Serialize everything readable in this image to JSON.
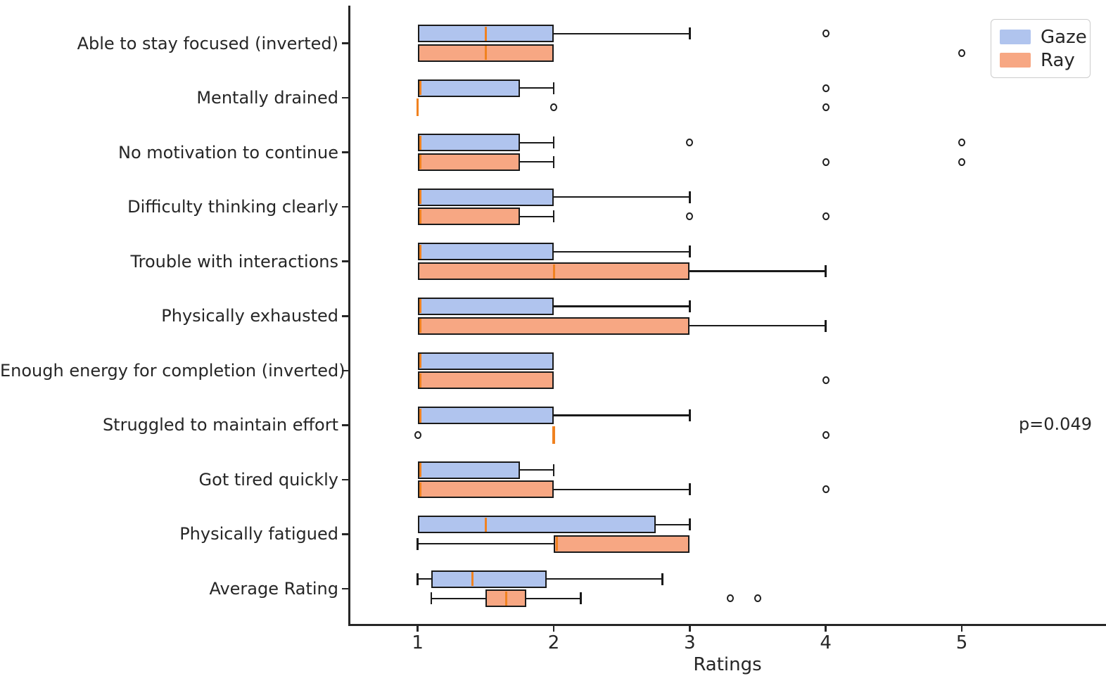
{
  "chart_data": {
    "type": "boxplot",
    "orientation": "horizontal",
    "title": "",
    "xlabel": "Ratings",
    "x_ticks": [
      1,
      2,
      3,
      4,
      5
    ],
    "xlim": [
      0.5,
      6.06
    ],
    "grid": false,
    "legend_position": "upper-right",
    "categories": [
      "Able to stay focused (inverted)",
      "Mentally drained",
      "No motivation to continue",
      "Difficulty thinking clearly",
      "Trouble with interactions",
      "Physically exhausted",
      "Enough energy for completion (inverted)",
      "Struggled to maintain effort",
      "Got tired quickly",
      "Physically fatigued",
      "Average Rating"
    ],
    "series": [
      {
        "name": "Gaze",
        "color": "#b0c4ee",
        "boxes": [
          {
            "whislo": 1.0,
            "q1": 1.0,
            "med": 1.5,
            "q3": 2.0,
            "whishi": 3.0,
            "fliers": [
              4
            ]
          },
          {
            "whislo": 1.0,
            "q1": 1.0,
            "med": 1.0,
            "q3": 1.75,
            "whishi": 2.0,
            "fliers": [
              4
            ]
          },
          {
            "whislo": 1.0,
            "q1": 1.0,
            "med": 1.0,
            "q3": 1.75,
            "whishi": 2.0,
            "fliers": [
              3,
              5
            ]
          },
          {
            "whislo": 1.0,
            "q1": 1.0,
            "med": 1.0,
            "q3": 2.0,
            "whishi": 3.0,
            "fliers": []
          },
          {
            "whislo": 1.0,
            "q1": 1.0,
            "med": 1.0,
            "q3": 2.0,
            "whishi": 3.0,
            "fliers": []
          },
          {
            "whislo": 1.0,
            "q1": 1.0,
            "med": 1.0,
            "q3": 2.0,
            "whishi": 3.0,
            "fliers": []
          },
          {
            "whislo": 1.0,
            "q1": 1.0,
            "med": 1.0,
            "q3": 2.0,
            "whishi": 2.0,
            "fliers": []
          },
          {
            "whislo": 1.0,
            "q1": 1.0,
            "med": 1.0,
            "q3": 2.0,
            "whishi": 3.0,
            "fliers": []
          },
          {
            "whislo": 1.0,
            "q1": 1.0,
            "med": 1.0,
            "q3": 1.75,
            "whishi": 2.0,
            "fliers": []
          },
          {
            "whislo": 1.0,
            "q1": 1.0,
            "med": 1.5,
            "q3": 2.75,
            "whishi": 3.0,
            "fliers": []
          },
          {
            "whislo": 1.0,
            "q1": 1.1,
            "med": 1.4,
            "q3": 1.95,
            "whishi": 2.8,
            "fliers": []
          }
        ]
      },
      {
        "name": "Ray",
        "color": "#f7a783",
        "boxes": [
          {
            "whislo": 1.0,
            "q1": 1.0,
            "med": 1.5,
            "q3": 2.0,
            "whishi": 2.0,
            "fliers": [
              5
            ]
          },
          {
            "whislo": 1.0,
            "q1": 1.0,
            "med": 1.0,
            "q3": 1.0,
            "whishi": 1.0,
            "fliers": [
              2,
              4
            ]
          },
          {
            "whislo": 1.0,
            "q1": 1.0,
            "med": 1.0,
            "q3": 1.75,
            "whishi": 2.0,
            "fliers": [
              4,
              5
            ]
          },
          {
            "whislo": 1.0,
            "q1": 1.0,
            "med": 1.0,
            "q3": 1.75,
            "whishi": 2.0,
            "fliers": [
              3,
              4
            ]
          },
          {
            "whislo": 1.0,
            "q1": 1.0,
            "med": 2.0,
            "q3": 3.0,
            "whishi": 4.0,
            "fliers": []
          },
          {
            "whislo": 1.0,
            "q1": 1.0,
            "med": 1.0,
            "q3": 3.0,
            "whishi": 4.0,
            "fliers": []
          },
          {
            "whislo": 1.0,
            "q1": 1.0,
            "med": 1.0,
            "q3": 2.0,
            "whishi": 2.0,
            "fliers": [
              4
            ]
          },
          {
            "whislo": 2.0,
            "q1": 2.0,
            "med": 2.0,
            "q3": 2.0,
            "whishi": 2.0,
            "fliers": [
              1,
              4
            ]
          },
          {
            "whislo": 1.0,
            "q1": 1.0,
            "med": 1.0,
            "q3": 2.0,
            "whishi": 3.0,
            "fliers": [
              4
            ]
          },
          {
            "whislo": 1.0,
            "q1": 2.0,
            "med": 2.0,
            "q3": 3.0,
            "whishi": 3.0,
            "fliers": []
          },
          {
            "whislo": 1.1,
            "q1": 1.5,
            "med": 1.65,
            "q3": 1.8,
            "whishi": 2.2,
            "fliers": [
              3.3,
              3.5
            ]
          }
        ]
      }
    ],
    "annotation": {
      "text": "p=0.049",
      "category": "Struggled to maintain effort"
    },
    "colors": {
      "gaze_fill": "#b0c4ee",
      "ray_fill": "#f7a783",
      "median": "#f08220",
      "box_edge": "#1a1a1a",
      "spine": "#262626",
      "text": "#262626",
      "legend_border": "#cccccc"
    }
  }
}
